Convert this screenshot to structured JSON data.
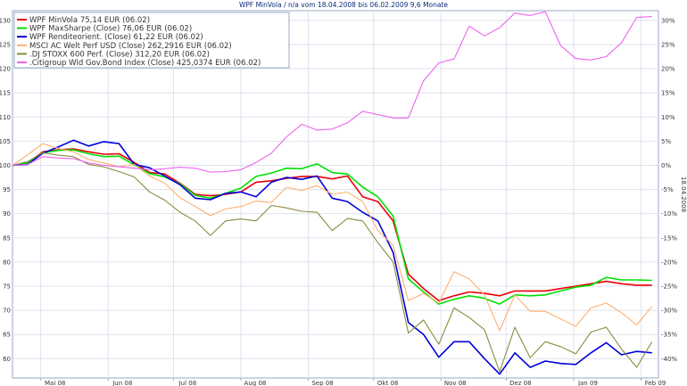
{
  "chart_data": {
    "type": "line",
    "title": "WPF MinVola / n/a vom 18.04.2008 bis 06.02.2009 9,6 Monate",
    "side_label": "18.04.2008",
    "grid": true,
    "legend_position": "top-left",
    "ylim": [
      56,
      132
    ],
    "y_left_ticks": [
      60,
      65,
      70,
      75,
      80,
      85,
      90,
      95,
      100,
      105,
      110,
      115,
      120,
      125,
      130
    ],
    "y_right_ticks": [
      "30%",
      "25%",
      "20%",
      "15%",
      "10%",
      "5%",
      "0%",
      "-5%",
      "-10%",
      "-15%",
      "-20%",
      "-25%",
      "-30%",
      "-35%",
      "-40%"
    ],
    "y_right_values": [
      130,
      125,
      120,
      115,
      110,
      105,
      100,
      95,
      90,
      85,
      80,
      75,
      70,
      65,
      60
    ],
    "x_range": [
      "2008-04-18",
      "2009-02-09"
    ],
    "x_ticks": [
      {
        "label": "Mai 08",
        "date": "2008-05-01"
      },
      {
        "label": "Jun 08",
        "date": "2008-06-01"
      },
      {
        "label": "Jul 08",
        "date": "2008-07-01"
      },
      {
        "label": "Aug 08",
        "date": "2008-08-01"
      },
      {
        "label": "Sep 08",
        "date": "2008-09-01"
      },
      {
        "label": "Okt 08",
        "date": "2008-10-01"
      },
      {
        "label": "Nov 08",
        "date": "2008-11-01"
      },
      {
        "label": "Dez 08",
        "date": "2008-12-01"
      },
      {
        "label": "Jan 09",
        "date": "2009-01-01"
      },
      {
        "label": "Feb 09",
        "date": "2009-02-01"
      }
    ],
    "x": [
      "2008-04-18",
      "2008-04-25",
      "2008-05-02",
      "2008-05-09",
      "2008-05-16",
      "2008-05-23",
      "2008-05-30",
      "2008-06-06",
      "2008-06-13",
      "2008-06-20",
      "2008-06-27",
      "2008-07-04",
      "2008-07-11",
      "2008-07-18",
      "2008-07-25",
      "2008-08-01",
      "2008-08-08",
      "2008-08-15",
      "2008-08-22",
      "2008-08-29",
      "2008-09-05",
      "2008-09-12",
      "2008-09-19",
      "2008-09-26",
      "2008-10-03",
      "2008-10-10",
      "2008-10-17",
      "2008-10-24",
      "2008-10-31",
      "2008-11-07",
      "2008-11-14",
      "2008-11-21",
      "2008-11-28",
      "2008-12-05",
      "2008-12-12",
      "2008-12-19",
      "2008-12-26",
      "2009-01-02",
      "2009-01-09",
      "2009-01-16",
      "2009-01-23",
      "2009-01-30",
      "2009-02-06"
    ],
    "series": [
      {
        "name": "WPF MinVola 75,14 EUR (06.02)",
        "color": "#e8000b",
        "width": 1.6,
        "values": [
          100,
          100.5,
          102.8,
          103.2,
          103.4,
          102.8,
          102.3,
          102.4,
          100.6,
          98.5,
          98.2,
          96.3,
          94,
          93.7,
          94,
          94.5,
          96.5,
          96.8,
          97.3,
          97.7,
          97.7,
          97.2,
          97.8,
          93.5,
          92.5,
          88.5,
          77.5,
          74.5,
          72,
          73,
          73.8,
          73.5,
          73,
          74,
          74,
          74,
          74.5,
          75,
          75.5,
          76,
          75.5,
          75.2,
          75.2
        ]
      },
      {
        "name": "WPF MaxSharpe (Close) 76,06 EUR (06.02)",
        "color": "#00e000",
        "width": 1.6,
        "values": [
          100,
          100.5,
          102.6,
          103.1,
          103.2,
          102.4,
          101.8,
          101.9,
          100.1,
          98.3,
          97.6,
          96.2,
          93.8,
          93.2,
          94.2,
          95.3,
          97.7,
          98.4,
          99.4,
          99.3,
          100.3,
          98.5,
          98.2,
          95.5,
          93.5,
          89.5,
          76.5,
          73.8,
          71.3,
          72.3,
          73,
          72.5,
          71.3,
          73.2,
          73,
          73.2,
          74,
          74.8,
          75.2,
          76.8,
          76.3,
          76.3,
          76.2
        ]
      },
      {
        "name": "WPF Renditeorient. (Close) 61,22 EUR (06.02)",
        "color": "#0000d8",
        "width": 1.6,
        "values": [
          100,
          100.2,
          102.5,
          103.8,
          105.2,
          104,
          104.9,
          104.5,
          100.2,
          99.5,
          97.8,
          96,
          93.2,
          92.9,
          94.2,
          94.5,
          93.5,
          96.5,
          97.5,
          97.1,
          97.8,
          93.2,
          92.5,
          90.3,
          88.5,
          82,
          67.5,
          65,
          60.3,
          63.5,
          63.5,
          60,
          56.8,
          61.2,
          58.2,
          59.5,
          59,
          58.8,
          61.2,
          63.3,
          60.8,
          61.5,
          61.2
        ]
      },
      {
        "name": "MSCI AC Welt Perf USD (Close) 262,2916 EUR (06.02)",
        "color": "#ffb070",
        "width": 1.1,
        "values": [
          100,
          102.2,
          104.5,
          103.5,
          102.8,
          101.2,
          100.5,
          99.7,
          100.2,
          97.8,
          96.3,
          93.3,
          91.5,
          89.6,
          91,
          91.5,
          92.6,
          92.3,
          95.5,
          94.8,
          95.8,
          94,
          94.5,
          92.5,
          86.5,
          83.5,
          72,
          73.5,
          71.5,
          78,
          76.5,
          73.2,
          65.8,
          73.2,
          69.8,
          69.8,
          68.2,
          66.7,
          70.5,
          71.5,
          69.5,
          67,
          70.8
        ]
      },
      {
        "name": ".DJ STOXX 600 Perf. (Close) 312,20 EUR (06.02)",
        "color": "#8b8b40",
        "width": 1.1,
        "values": [
          100,
          100.8,
          102.6,
          102.1,
          101.8,
          100.2,
          99.7,
          98.7,
          97.6,
          94.5,
          92.8,
          90.3,
          88.5,
          85.5,
          88.5,
          88.9,
          88.5,
          91.7,
          91.2,
          90.5,
          90.3,
          86.5,
          89,
          88.5,
          84,
          80,
          65.3,
          68,
          63,
          70.5,
          68.5,
          66,
          57.3,
          66.5,
          60.2,
          63.5,
          62.5,
          61,
          65.5,
          66.5,
          62,
          58.2,
          63.5
        ]
      },
      {
        "name": ".Citigroup Wld Gov.Bond Index (Close) 425,0374 EUR (06.02)",
        "color": "#ee62ee",
        "width": 1.1,
        "values": [
          100,
          100.2,
          101.8,
          101.5,
          101.4,
          100.5,
          100,
          99.7,
          99.4,
          99.1,
          99.3,
          99.6,
          99.4,
          98.6,
          98.7,
          99.1,
          100.6,
          102.5,
          105.9,
          108.5,
          107.3,
          107.5,
          108.8,
          111.2,
          110.5,
          109.8,
          109.8,
          117.5,
          121.2,
          122,
          128.8,
          126.8,
          128.5,
          131.5,
          131,
          131.8,
          124.8,
          122.1,
          121.8,
          122.5,
          125.4,
          130.6,
          130.8
        ]
      }
    ]
  }
}
